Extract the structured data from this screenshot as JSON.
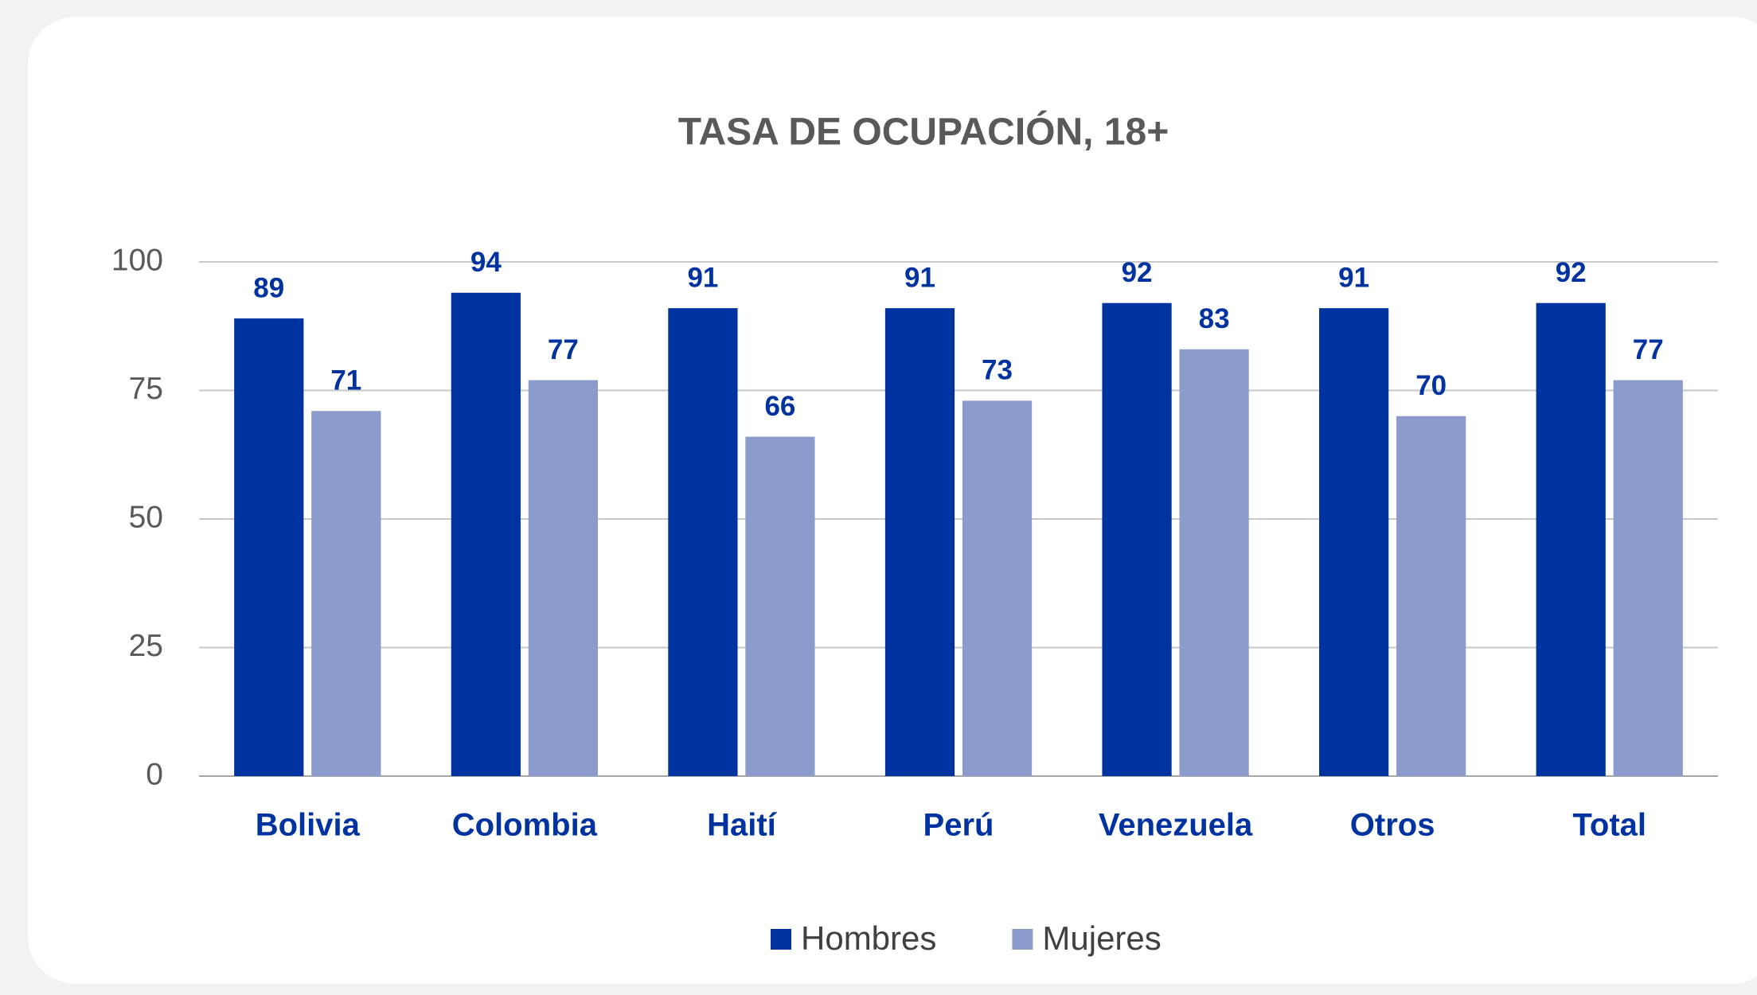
{
  "chart_data": {
    "type": "bar",
    "title": "TASA DE OCUPACIÓN, 18+",
    "categories": [
      "Bolivia",
      "Colombia",
      "Haití",
      "Perú",
      "Venezuela",
      "Otros",
      "Total"
    ],
    "series": [
      {
        "name": "Hombres",
        "color": "#0033a0",
        "values": [
          89,
          94,
          91,
          91,
          92,
          91,
          92
        ]
      },
      {
        "name": "Mujeres",
        "color": "#8a9bcc",
        "values": [
          71,
          77,
          66,
          73,
          83,
          70,
          77
        ]
      }
    ],
    "ylim": [
      0,
      100
    ],
    "yticks": [
      0,
      25,
      50,
      75,
      100
    ],
    "grid": true,
    "legend": "bottom"
  }
}
